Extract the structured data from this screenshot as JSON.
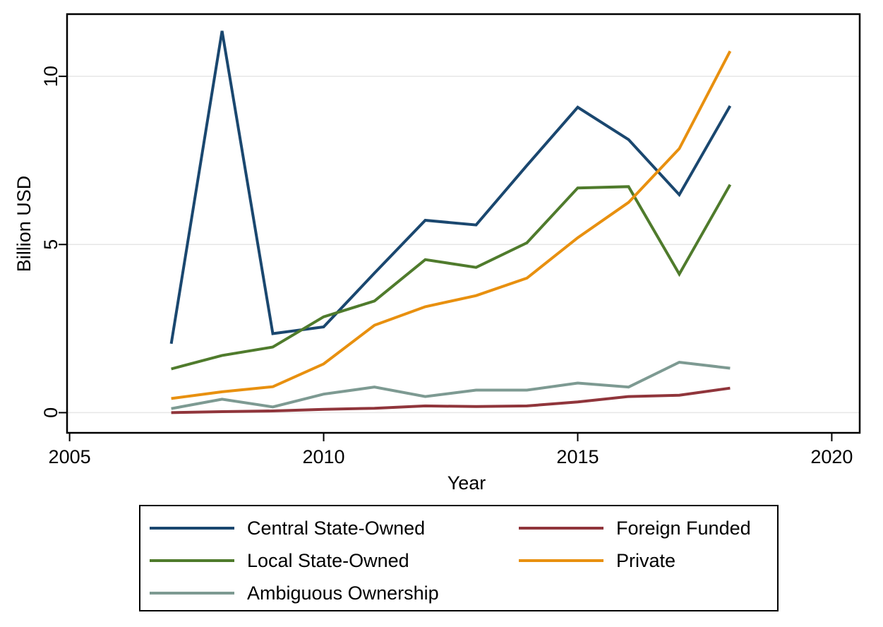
{
  "chart_data": {
    "type": "line",
    "xlabel": "Year",
    "ylabel": "Billion USD",
    "xlim": [
      2004.95,
      2020.55
    ],
    "ylim": [
      -0.6,
      11.85
    ],
    "xticks": [
      2005,
      2010,
      2015,
      2020
    ],
    "xtick_labels": [
      "2005",
      "2010",
      "2015",
      "2020"
    ],
    "yticks": [
      0,
      5,
      10
    ],
    "ytick_labels": [
      "0",
      "5",
      "10"
    ],
    "grid": "horizontal",
    "legend": "bottom, outside plot, 2 columns",
    "x": [
      2007,
      2008,
      2009,
      2010,
      2011,
      2012,
      2013,
      2014,
      2015,
      2016,
      2017,
      2018
    ],
    "series": [
      {
        "name": "Central State-Owned",
        "color": "#1a476f",
        "values": [
          2.05,
          11.35,
          2.35,
          2.55,
          4.15,
          5.72,
          5.58,
          7.35,
          9.08,
          8.12,
          6.48,
          9.12
        ]
      },
      {
        "name": "Local State-Owned",
        "color": "#4f7b2c",
        "values": [
          1.3,
          1.7,
          1.95,
          2.85,
          3.32,
          4.55,
          4.32,
          5.05,
          6.68,
          6.72,
          4.12,
          6.78
        ]
      },
      {
        "name": "Ambiguous Ownership",
        "color": "#7d9a92",
        "values": [
          0.12,
          0.4,
          0.17,
          0.55,
          0.76,
          0.48,
          0.67,
          0.67,
          0.88,
          0.76,
          1.5,
          1.32
        ]
      },
      {
        "name": "Foreign Funded",
        "color": "#90353b",
        "values": [
          0.0,
          0.03,
          0.05,
          0.1,
          0.13,
          0.2,
          0.18,
          0.2,
          0.32,
          0.48,
          0.52,
          0.73
        ]
      },
      {
        "name": "Private",
        "color": "#e8900f",
        "values": [
          0.42,
          0.62,
          0.77,
          1.45,
          2.6,
          3.15,
          3.48,
          4.0,
          5.2,
          6.25,
          7.85,
          10.75
        ]
      }
    ]
  }
}
